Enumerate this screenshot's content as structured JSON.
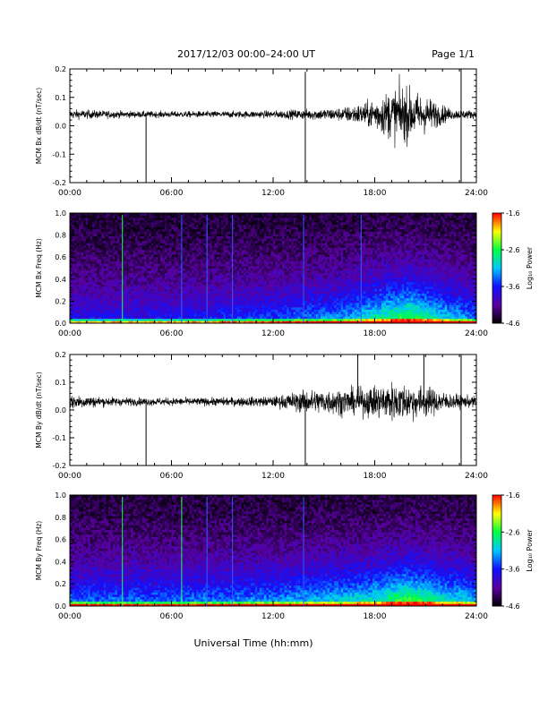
{
  "header": {
    "date_range": "2017/12/03  00:00–24:00 UT",
    "page": "Page 1/1"
  },
  "xaxis": {
    "label": "Universal Time (hh:mm)",
    "ticks": [
      "00:00",
      "06:00",
      "12:00",
      "18:00",
      "24:00"
    ]
  },
  "colorbar": {
    "label": "Log₁₀ Power",
    "ticks": [
      "-1.6",
      "-2.6",
      "-3.6",
      "-4.6"
    ],
    "range": [
      -4.6,
      -1.6
    ],
    "colors": [
      "#000000",
      "#5a00a0",
      "#1010ff",
      "#00c8ff",
      "#00ff40",
      "#ffff00",
      "#ff0000"
    ]
  },
  "chart_data": [
    {
      "type": "line",
      "ylabel": "MCM Bx dB/dt (nT/sec)",
      "ylim": [
        -0.2,
        0.2
      ],
      "yticks": [
        "0.2",
        "0.1",
        "0.0",
        "-0.1",
        "-0.2"
      ],
      "xlim": [
        0,
        24
      ],
      "baseline": 0.04,
      "noise_profile": {
        "hours": [
          0,
          4,
          8,
          12,
          14,
          16,
          17.5,
          19.5,
          21,
          22.5,
          24
        ],
        "amplitude": [
          0.018,
          0.012,
          0.012,
          0.014,
          0.02,
          0.025,
          0.045,
          0.11,
          0.07,
          0.02,
          0.015
        ]
      },
      "spikes": [
        {
          "hour": 4.5,
          "to": -0.2
        },
        {
          "hour": 13.9,
          "to": -0.2
        },
        {
          "hour": 23.1,
          "to": -0.2
        },
        {
          "hour": 23.1,
          "to": 0.2
        },
        {
          "hour": 13.9,
          "to": 0.19
        }
      ]
    },
    {
      "type": "heatmap",
      "ylabel": "MCM Bx Freq (Hz)",
      "ylim": [
        0,
        1.0
      ],
      "yticks": [
        "1.0",
        "0.8",
        "0.6",
        "0.4",
        "0.2",
        "0.0"
      ],
      "xlim": [
        0,
        24
      ],
      "value_range": [
        -4.6,
        -1.6
      ],
      "activity_profile": {
        "hours": [
          0,
          6,
          12,
          16,
          18,
          20,
          22,
          24
        ],
        "level": [
          0.1,
          0.12,
          0.2,
          0.3,
          0.45,
          0.6,
          0.4,
          0.25
        ]
      },
      "vertical_lines": [
        {
          "hour": 3.1,
          "color": "#30ff60"
        },
        {
          "hour": 6.6,
          "color": "#3060ff"
        },
        {
          "hour": 8.1,
          "color": "#3060ff"
        },
        {
          "hour": 9.6,
          "color": "#3060ff"
        },
        {
          "hour": 13.8,
          "color": "#3060ff"
        },
        {
          "hour": 17.2,
          "color": "#3060ff"
        }
      ]
    },
    {
      "type": "line",
      "ylabel": "MCM By dB/dt (nT/sec)",
      "ylim": [
        -0.2,
        0.2
      ],
      "yticks": [
        "0.2",
        "0.1",
        "0.0",
        "-0.1",
        "-0.2"
      ],
      "xlim": [
        0,
        24
      ],
      "baseline": 0.03,
      "noise_profile": {
        "hours": [
          0,
          2,
          4,
          8,
          12,
          14,
          16,
          17,
          19,
          21,
          22.5,
          24
        ],
        "amplitude": [
          0.03,
          0.018,
          0.015,
          0.015,
          0.02,
          0.045,
          0.05,
          0.05,
          0.075,
          0.06,
          0.03,
          0.02
        ]
      },
      "spikes": [
        {
          "hour": 4.5,
          "to": -0.2
        },
        {
          "hour": 13.9,
          "to": -0.2
        },
        {
          "hour": 23.1,
          "to": -0.2
        },
        {
          "hour": 23.1,
          "to": 0.2
        },
        {
          "hour": 17.0,
          "to": 0.2
        },
        {
          "hour": 20.9,
          "to": 0.2
        }
      ]
    },
    {
      "type": "heatmap",
      "ylabel": "MCM By Freq (Hz)",
      "ylim": [
        0,
        1.0
      ],
      "yticks": [
        "1.0",
        "0.8",
        "0.6",
        "0.4",
        "0.2",
        "0.0"
      ],
      "xlim": [
        0,
        24
      ],
      "value_range": [
        -4.6,
        -1.6
      ],
      "activity_profile": {
        "hours": [
          0,
          6,
          12,
          16,
          18,
          20,
          22,
          24
        ],
        "level": [
          0.25,
          0.25,
          0.3,
          0.38,
          0.45,
          0.6,
          0.45,
          0.35
        ]
      },
      "vertical_lines": [
        {
          "hour": 3.1,
          "color": "#30ff60"
        },
        {
          "hour": 6.6,
          "color": "#30ff60"
        },
        {
          "hour": 8.1,
          "color": "#3060ff"
        },
        {
          "hour": 9.6,
          "color": "#3060ff"
        },
        {
          "hour": 13.8,
          "color": "#3060ff"
        }
      ]
    }
  ]
}
